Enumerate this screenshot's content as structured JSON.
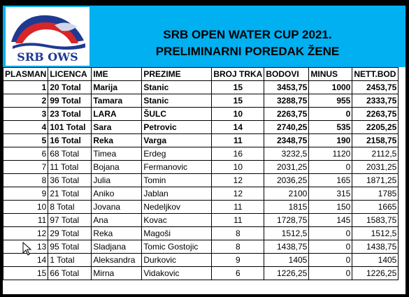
{
  "logo_text": "SRB OWS",
  "title": "SRB OPEN WATER CUP 2021.",
  "subtitle": "PRELIMINARNI POREDAK ŽENE",
  "columns": [
    "PLASMAN",
    "LICENCA",
    "IME",
    "PREZIME",
    "BROJ TRKA",
    "BODOVI",
    "MINUS",
    "NETT.BOD"
  ],
  "rows": [
    [
      "1",
      "20 Total",
      "Marija",
      "Stanic",
      "15",
      "3453,75",
      "1000",
      "2453,75"
    ],
    [
      "2",
      "99 Total",
      "Tamara",
      "Stanic",
      "15",
      "3288,75",
      "955",
      "2333,75"
    ],
    [
      "3",
      "23 Total",
      "LARA",
      "ŠULC",
      "10",
      "2263,75",
      "0",
      "2263,75"
    ],
    [
      "4",
      "101 Total",
      "Sara",
      "Petrovic",
      "14",
      "2740,25",
      "535",
      "2205,25"
    ],
    [
      "5",
      "16 Total",
      "Reka",
      "Varga",
      "11",
      "2348,75",
      "190",
      "2158,75"
    ],
    [
      "6",
      "68 Total",
      "Timea",
      "Erdeg",
      "16",
      "3232,5",
      "1120",
      "2112,5"
    ],
    [
      "7",
      "11 Total",
      "Bojana",
      "Fermanovic",
      "10",
      "2031,25",
      "0",
      "2031,25"
    ],
    [
      "8",
      "36 Total",
      "Julia",
      "Tomin",
      "12",
      "2036,25",
      "165",
      "1871,25"
    ],
    [
      "9",
      "21 Total",
      "Aniko",
      "Jablan",
      "12",
      "2100",
      "315",
      "1785"
    ],
    [
      "10",
      "8 Total",
      "Jovana",
      "Nedeljkov",
      "11",
      "1815",
      "150",
      "1665"
    ],
    [
      "11",
      "97 Total",
      "Ana",
      "Kovac",
      "11",
      "1728,75",
      "145",
      "1583,75"
    ],
    [
      "12",
      "29 Total",
      "Reka",
      "Magoši",
      "8",
      "1512,5",
      "0",
      "1512,5"
    ],
    [
      "13",
      "95 Total",
      "Sladjana",
      "Tomic Gostojic",
      "8",
      "1438,75",
      "0",
      "1438,75"
    ],
    [
      "14",
      "1 Total",
      "Aleksandra",
      "Durkovic",
      "9",
      "1405",
      "0",
      "1405"
    ],
    [
      "15",
      "66 Total",
      "Mirna",
      "Vidakovic",
      "6",
      "1226,25",
      "0",
      "1226,25"
    ]
  ],
  "colors": {
    "header_bg": "#00b0f0",
    "logo_blue": "#1f3a93",
    "logo_red": "#d6262a"
  }
}
